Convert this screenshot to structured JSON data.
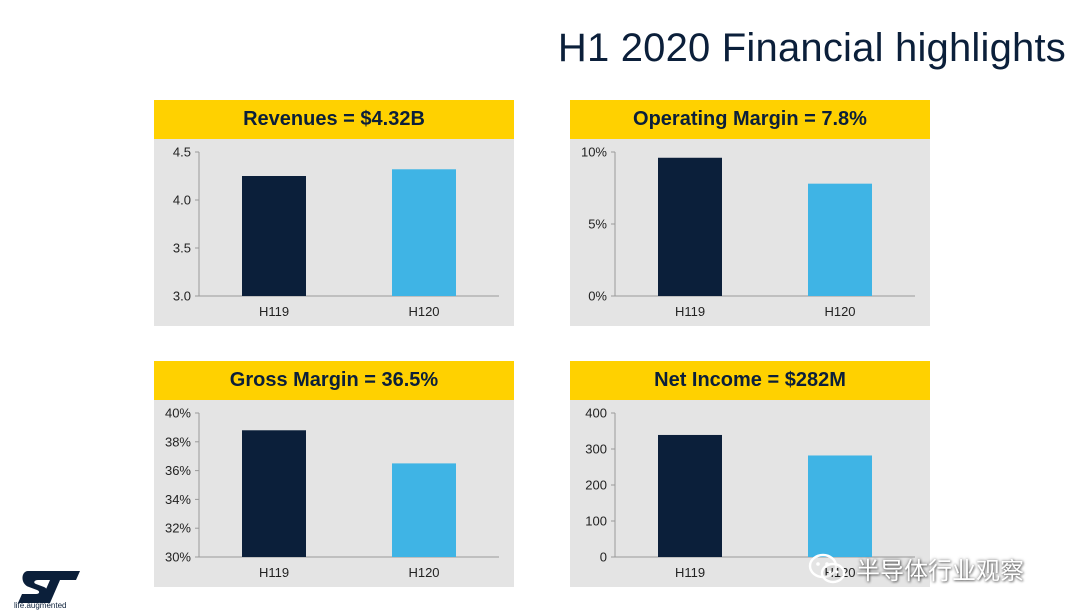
{
  "title": "H1 2020 Financial highlights",
  "colors": {
    "accent": "#ffd100",
    "h119": "#0b1f3a",
    "h120": "#3fb4e5",
    "panel_bg": "#e4e4e4"
  },
  "logo": {
    "tagline": "life.augmented",
    "icon": "st-logo"
  },
  "watermark": {
    "text": "半导体行业观察",
    "icon": "wechat-icon"
  },
  "chart_data": [
    {
      "type": "bar",
      "title": "Revenues = $4.32B",
      "categories": [
        "H119",
        "H120"
      ],
      "values": [
        4.25,
        4.32
      ],
      "ylim": [
        3.0,
        4.5
      ],
      "yticks": [
        3.0,
        3.5,
        4.0,
        4.5
      ],
      "ytick_labels": [
        "3.0",
        "3.5",
        "4.0",
        "4.5"
      ],
      "grid": false
    },
    {
      "type": "bar",
      "title": "Operating Margin = 7.8%",
      "categories": [
        "H119",
        "H120"
      ],
      "values": [
        9.6,
        7.8
      ],
      "ylim": [
        0,
        10
      ],
      "yticks": [
        0,
        5,
        10
      ],
      "ytick_labels": [
        "0%",
        "5%",
        "10%"
      ],
      "grid": false
    },
    {
      "type": "bar",
      "title": "Gross Margin = 36.5%",
      "categories": [
        "H119",
        "H120"
      ],
      "values": [
        38.8,
        36.5
      ],
      "ylim": [
        30,
        40
      ],
      "yticks": [
        30,
        32,
        34,
        36,
        38,
        40
      ],
      "ytick_labels": [
        "30%",
        "32%",
        "34%",
        "36%",
        "38%",
        "40%"
      ],
      "grid": false
    },
    {
      "type": "bar",
      "title": "Net Income = $282M",
      "categories": [
        "H119",
        "H120"
      ],
      "values": [
        339,
        282
      ],
      "ylim": [
        0,
        400
      ],
      "yticks": [
        0,
        100,
        200,
        300,
        400
      ],
      "ytick_labels": [
        "0",
        "100",
        "200",
        "300",
        "400"
      ],
      "grid": false
    }
  ]
}
